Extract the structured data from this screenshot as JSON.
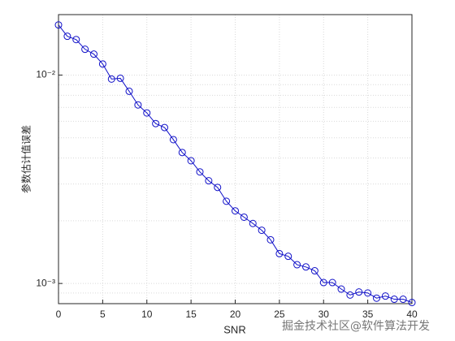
{
  "chart_data": {
    "type": "line",
    "xlabel": "SNR",
    "ylabel": "参数估计值误差",
    "watermark": "掘金技术社区@软件算法开发",
    "x": [
      0,
      1,
      2,
      3,
      4,
      5,
      6,
      7,
      8,
      9,
      10,
      11,
      12,
      13,
      14,
      15,
      16,
      17,
      18,
      19,
      20,
      21,
      22,
      23,
      24,
      25,
      26,
      27,
      28,
      29,
      30,
      31,
      32,
      33,
      34,
      35,
      36,
      37,
      38,
      39,
      40
    ],
    "series": [
      {
        "color": "#1010c8",
        "marker": "circle",
        "values": [
          0.0174,
          0.01535,
          0.0148,
          0.0133,
          0.0126,
          0.0113,
          0.00957,
          0.00965,
          0.00836,
          0.00719,
          0.00658,
          0.00585,
          0.0056,
          0.0049,
          0.00425,
          0.00388,
          0.00343,
          0.00311,
          0.00289,
          0.00248,
          0.00223,
          0.00208,
          0.00194,
          0.0018,
          0.00162,
          0.00139,
          0.00135,
          0.00123,
          0.0012,
          0.00115,
          0.00101,
          0.00101,
          0.00094,
          0.00088,
          0.00091,
          0.0009,
          0.00085,
          0.00087,
          0.00084,
          0.00084,
          0.00081
        ]
      }
    ],
    "xlim": [
      0,
      40
    ],
    "xticks": [
      0,
      5,
      10,
      15,
      20,
      25,
      30,
      35,
      40
    ],
    "ylim": [
      0.0008,
      0.0195
    ],
    "yticks": [
      {
        "value": 0.001,
        "label": "10⁻³"
      },
      {
        "value": 0.01,
        "label": "10⁻²"
      }
    ],
    "log_y": true,
    "grid": true,
    "minor_grid": true
  }
}
